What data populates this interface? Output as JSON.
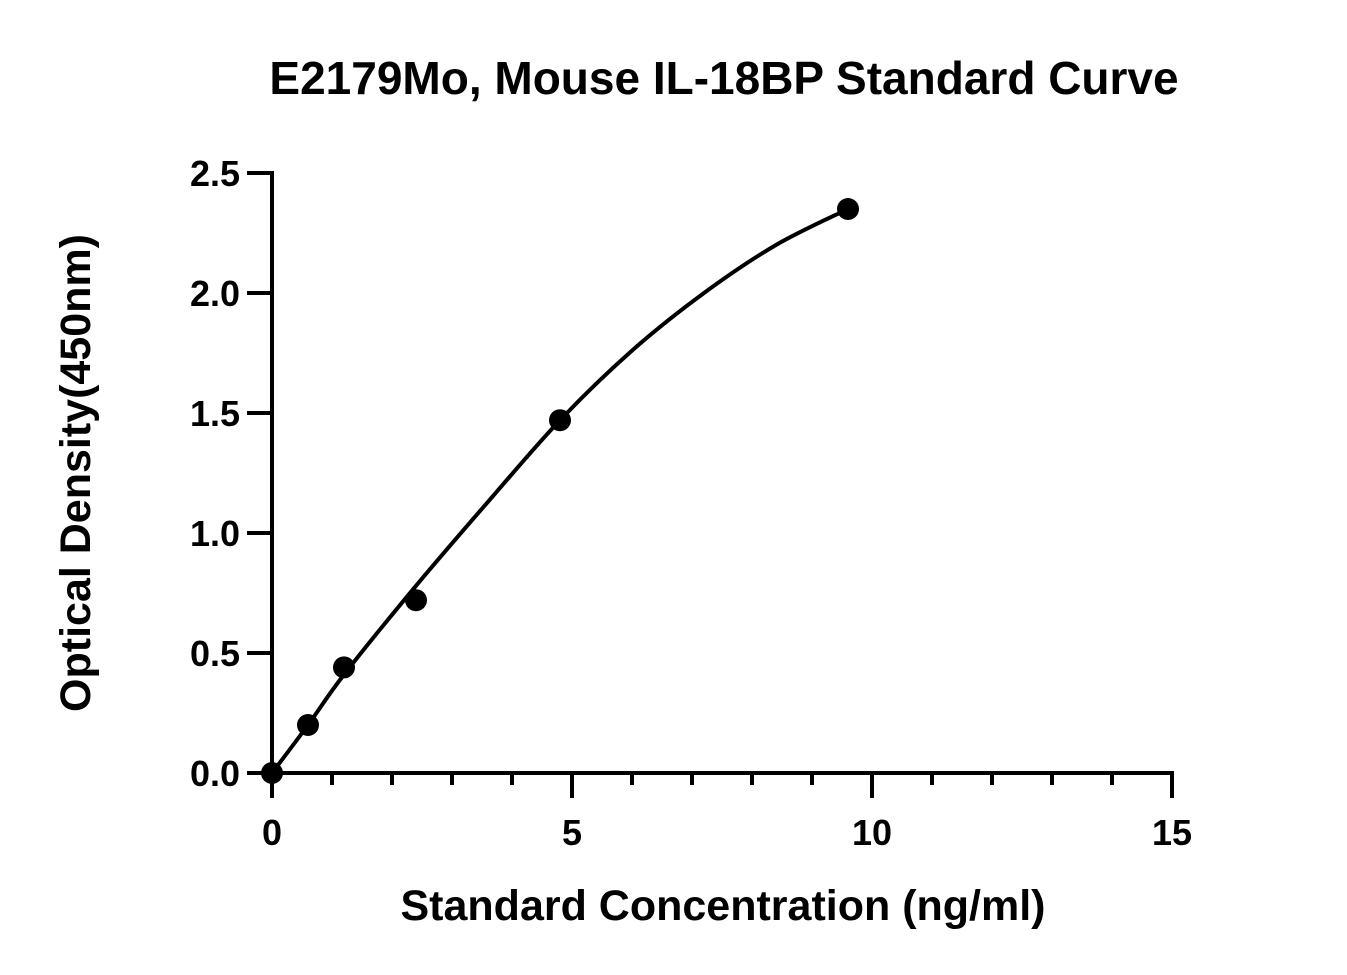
{
  "chart_data": {
    "type": "scatter",
    "title": "E2179Mo, Mouse IL-18BP Standard Curve",
    "xlabel": "Standard Concentration (ng/ml)",
    "ylabel": "Optical Density(450nm)",
    "xlim": [
      0,
      15
    ],
    "ylim": [
      0,
      2.5
    ],
    "x_ticks": [
      0,
      5,
      10,
      15
    ],
    "x_tick_labels": [
      "0",
      "5",
      "10",
      "15"
    ],
    "x_minor_step": 1,
    "y_ticks": [
      0,
      0.5,
      1.0,
      1.5,
      2.0,
      2.5
    ],
    "y_tick_labels": [
      "0.0",
      "0.5",
      "1.0",
      "1.5",
      "2.0",
      "2.5"
    ],
    "grid": false,
    "series": [
      {
        "points": [
          {
            "x": 0,
            "y": 0.0
          },
          {
            "x": 0.6,
            "y": 0.2
          },
          {
            "x": 1.2,
            "y": 0.44
          },
          {
            "x": 2.4,
            "y": 0.72
          },
          {
            "x": 4.8,
            "y": 1.47
          },
          {
            "x": 9.6,
            "y": 2.35
          }
        ],
        "fit_curve": {
          "x": [
            0,
            0.6,
            1.2,
            2.4,
            3.6,
            4.8,
            6.0,
            7.2,
            8.4,
            9.6
          ],
          "y": [
            0.0,
            0.2,
            0.41,
            0.78,
            1.13,
            1.47,
            1.76,
            2.0,
            2.2,
            2.35
          ]
        }
      }
    ]
  }
}
